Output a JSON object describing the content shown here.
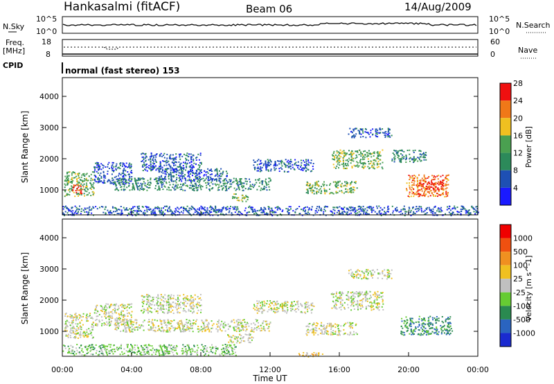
{
  "header": {
    "station": "Hankasalmi (fitACF)",
    "beam": "Beam 06",
    "date": "14/Aug/2009"
  },
  "panels": {
    "nsky_label": "N.Sky",
    "nsky_top": "10^5",
    "nsky_bottom": "10^0",
    "nsearch_label": "N.Search",
    "nsearch_top": "10^5",
    "nsearch_bottom": "10^0",
    "freq_label_1": "Freq.",
    "freq_label_2": "[MHz]",
    "freq_top": "18",
    "freq_bottom": "8",
    "nave_label": "Nave",
    "nave_top": "60",
    "nave_bottom": "0",
    "cpid_label": "CPID",
    "cpid_text": "normal (fast stereo) 153"
  },
  "colors": {
    "power": [
      "#1a1aff",
      "#1e50b4",
      "#2c8a5a",
      "#4aa050",
      "#f0c020",
      "#f07818",
      "#f01010"
    ],
    "velocity": [
      "#1a2ad0",
      "#2a64c0",
      "#2a8a50",
      "#66cc33",
      "#c0c0c0",
      "#f0c020",
      "#f09020",
      "#f05010",
      "#f00000"
    ]
  },
  "chart_data": [
    {
      "type": "heatmap",
      "name_panel": "power",
      "ylabel": "Slant Range [km]",
      "xlabel": "",
      "yticks": [
        "1000",
        "2000",
        "3000",
        "4000"
      ],
      "ylim": [
        200,
        4600
      ],
      "xlim": [
        0,
        24
      ],
      "colorbar_label": "Power [dB]",
      "colorbar_ticks": [
        "4",
        "8",
        "12",
        "16",
        "20",
        "24",
        "28"
      ],
      "patches": [
        {
          "t0": 0.1,
          "t1": 1.8,
          "r0": 800,
          "r1": 1600,
          "level": 3
        },
        {
          "t0": 0.5,
          "t1": 1.2,
          "r0": 900,
          "r1": 1200,
          "level": 6
        },
        {
          "t0": 1.8,
          "t1": 4.0,
          "r0": 1200,
          "r1": 1900,
          "level": 1
        },
        {
          "t0": 3.0,
          "t1": 12.0,
          "r0": 1000,
          "r1": 1400,
          "level": 2
        },
        {
          "t0": 4.5,
          "t1": 8.0,
          "r0": 1600,
          "r1": 2200,
          "level": 1
        },
        {
          "t0": 5.5,
          "t1": 9.5,
          "r0": 1300,
          "r1": 1700,
          "level": 1
        },
        {
          "t0": 9.8,
          "t1": 10.8,
          "r0": 650,
          "r1": 900,
          "level": 3
        },
        {
          "t0": 11.0,
          "t1": 14.5,
          "r0": 1600,
          "r1": 2000,
          "level": 1
        },
        {
          "t0": 14.0,
          "t1": 17.0,
          "r0": 900,
          "r1": 1300,
          "level": 3
        },
        {
          "t0": 15.5,
          "t1": 18.5,
          "r0": 1700,
          "r1": 2300,
          "level": 3
        },
        {
          "t0": 16.5,
          "t1": 19.0,
          "r0": 2700,
          "r1": 3000,
          "level": 1
        },
        {
          "t0": 19.0,
          "t1": 21.0,
          "r0": 1900,
          "r1": 2300,
          "level": 2
        },
        {
          "t0": 19.8,
          "t1": 22.3,
          "r0": 800,
          "r1": 1500,
          "level": 5
        },
        {
          "t0": 20.5,
          "t1": 22.0,
          "r0": 1000,
          "r1": 1300,
          "level": 6
        },
        {
          "t0": 0.0,
          "t1": 24.0,
          "r0": 200,
          "r1": 500,
          "level": 1
        }
      ]
    },
    {
      "type": "heatmap",
      "name_panel": "velocity",
      "ylabel": "Slant Range [km]",
      "xlabel": "Time UT",
      "yticks": [
        "1000",
        "2000",
        "3000",
        "4000"
      ],
      "ylim": [
        200,
        4600
      ],
      "xlim": [
        0,
        24
      ],
      "xticks": [
        "00:00",
        "04:00",
        "08:00",
        "12:00",
        "16:00",
        "20:00",
        "00:00"
      ],
      "colorbar_label": "Velocity [m s^-1]",
      "colorbar_ticks": [
        "1000",
        "500",
        "100",
        "25",
        "-25",
        "-100",
        "-500",
        "-1000"
      ],
      "patches": [
        {
          "t0": 0.1,
          "t1": 1.8,
          "r0": 800,
          "r1": 1600,
          "level": 4
        },
        {
          "t0": 1.8,
          "t1": 4.0,
          "r0": 1200,
          "r1": 1900,
          "level": 4
        },
        {
          "t0": 3.0,
          "t1": 12.0,
          "r0": 1000,
          "r1": 1400,
          "level": 4
        },
        {
          "t0": 4.5,
          "t1": 8.0,
          "r0": 1600,
          "r1": 2200,
          "level": 4
        },
        {
          "t0": 9.5,
          "t1": 11.0,
          "r0": 650,
          "r1": 950,
          "level": 4
        },
        {
          "t0": 11.0,
          "t1": 14.5,
          "r0": 1600,
          "r1": 2000,
          "level": 4
        },
        {
          "t0": 14.0,
          "t1": 17.0,
          "r0": 900,
          "r1": 1300,
          "level": 4
        },
        {
          "t0": 15.5,
          "t1": 18.5,
          "r0": 1700,
          "r1": 2300,
          "level": 4
        },
        {
          "t0": 16.5,
          "t1": 19.0,
          "r0": 2700,
          "r1": 3000,
          "level": 4
        },
        {
          "t0": 19.5,
          "t1": 22.5,
          "r0": 900,
          "r1": 1500,
          "level": 2
        },
        {
          "t0": 0.0,
          "t1": 10.0,
          "r0": 250,
          "r1": 600,
          "level": 3
        },
        {
          "t0": 13.5,
          "t1": 15.0,
          "r0": 200,
          "r1": 350,
          "level": 5
        }
      ]
    }
  ]
}
